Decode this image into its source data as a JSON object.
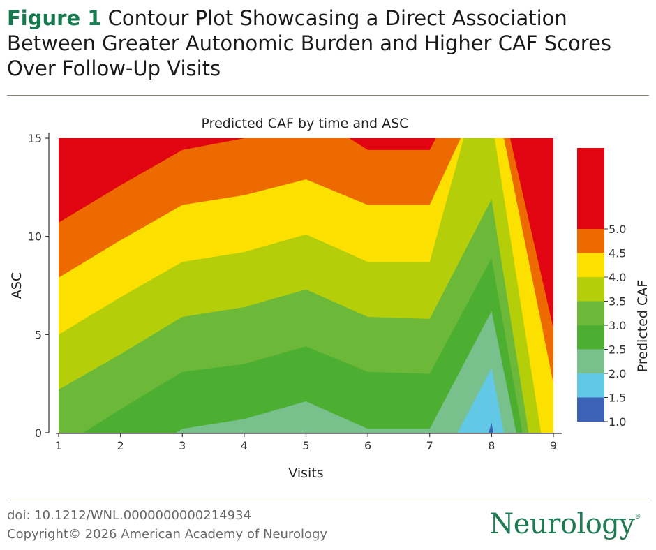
{
  "figure": {
    "label": "Figure 1",
    "title": "Contour Plot Showcasing a Direct Association Between Greater Autonomic Burden and Higher CAF Scores Over Follow-Up Visits"
  },
  "chart_data": {
    "type": "contour",
    "title": "Predicted CAF by time and ASC",
    "xlabel": "Visits",
    "ylabel": "ASC",
    "xlim": [
      1,
      9
    ],
    "ylim": [
      0,
      15
    ],
    "x_ticks": [
      1,
      2,
      3,
      4,
      5,
      6,
      7,
      8,
      9
    ],
    "y_ticks": [
      0,
      5,
      10,
      15
    ],
    "grid": false,
    "legend": {
      "title": "Predicted CAF",
      "placement": "right",
      "tick_labels": [
        "1.0",
        "1.5",
        "2.0",
        "2.5",
        "3.0",
        "3.5",
        "4.0",
        "4.5",
        "5.0"
      ],
      "levels": [
        {
          "from": 1.0,
          "to": 1.5,
          "color": "#3b62b5"
        },
        {
          "from": 1.5,
          "to": 2.0,
          "color": "#62c8e6"
        },
        {
          "from": 2.0,
          "to": 2.5,
          "color": "#78c08c"
        },
        {
          "from": 2.5,
          "to": 3.0,
          "color": "#4caf32"
        },
        {
          "from": 3.0,
          "to": 3.5,
          "color": "#6cb93a"
        },
        {
          "from": 3.5,
          "to": 4.0,
          "color": "#b4cf0a"
        },
        {
          "from": 4.0,
          "to": 4.5,
          "color": "#fbe000"
        },
        {
          "from": 4.5,
          "to": 5.0,
          "color": "#ec6a00"
        },
        {
          "from": 5.0,
          "to": 5.5,
          "color": "#e00510"
        }
      ]
    },
    "contour_boundaries": [
      {
        "level": 5.0,
        "points": [
          [
            1,
            10.7
          ],
          [
            2,
            12.6
          ],
          [
            3,
            14.4
          ],
          [
            4,
            15.0
          ],
          [
            5,
            15.0
          ],
          [
            5.7,
            15.0
          ],
          [
            6,
            14.4
          ],
          [
            7,
            14.4
          ],
          [
            7.1,
            15.0
          ],
          [
            8.2,
            15.0
          ],
          [
            8.3,
            15.0
          ],
          [
            9,
            5.3
          ]
        ]
      },
      {
        "level": 4.5,
        "points": [
          [
            1,
            7.9
          ],
          [
            2,
            9.8
          ],
          [
            3,
            11.6
          ],
          [
            4,
            12.1
          ],
          [
            5,
            12.9
          ],
          [
            6,
            11.6
          ],
          [
            7,
            11.6
          ],
          [
            7.5,
            15.0
          ],
          [
            8.2,
            15.0
          ],
          [
            9,
            2.5
          ]
        ]
      },
      {
        "level": 4.0,
        "points": [
          [
            1,
            5.0
          ],
          [
            2,
            6.9
          ],
          [
            3,
            8.7
          ],
          [
            4,
            9.2
          ],
          [
            5,
            10.1
          ],
          [
            6,
            8.7
          ],
          [
            7,
            8.7
          ],
          [
            7.55,
            15.0
          ],
          [
            8.05,
            15.0
          ],
          [
            8.8,
            0
          ]
        ]
      },
      {
        "level": 3.5,
        "points": [
          [
            1,
            2.2
          ],
          [
            2,
            4.0
          ],
          [
            3,
            5.9
          ],
          [
            4,
            6.4
          ],
          [
            5,
            7.3
          ],
          [
            6,
            5.9
          ],
          [
            7,
            5.8
          ],
          [
            8,
            11.9
          ],
          [
            8.6,
            0
          ]
        ]
      },
      {
        "level": 3.0,
        "points": [
          [
            1,
            0
          ],
          [
            1.4,
            0
          ],
          [
            2,
            1.2
          ],
          [
            3,
            3.1
          ],
          [
            4,
            3.5
          ],
          [
            5,
            4.4
          ],
          [
            6,
            3.1
          ],
          [
            7,
            3.0
          ],
          [
            8,
            8.9
          ],
          [
            8.5,
            0
          ]
        ]
      },
      {
        "level": 2.5,
        "points": [
          [
            1,
            0
          ],
          [
            2.9,
            0
          ],
          [
            3,
            0.2
          ],
          [
            4,
            0.7
          ],
          [
            5,
            1.6
          ],
          [
            6,
            0.2
          ],
          [
            7,
            0.2
          ],
          [
            8,
            6.2
          ],
          [
            8.4,
            0
          ]
        ]
      },
      {
        "level": 2.0,
        "points": [
          [
            7.45,
            0
          ],
          [
            8,
            3.3
          ],
          [
            8.2,
            0
          ]
        ]
      },
      {
        "level": 1.5,
        "points": [
          [
            7.95,
            0
          ],
          [
            8,
            0.5
          ],
          [
            8.03,
            0
          ]
        ]
      }
    ]
  },
  "footer": {
    "doi": "doi: 10.1212/WNL.0000000000214934",
    "copyright": "Copyright© 2026 American Academy of Neurology",
    "brand": "Neurology",
    "brand_mark": "®"
  }
}
